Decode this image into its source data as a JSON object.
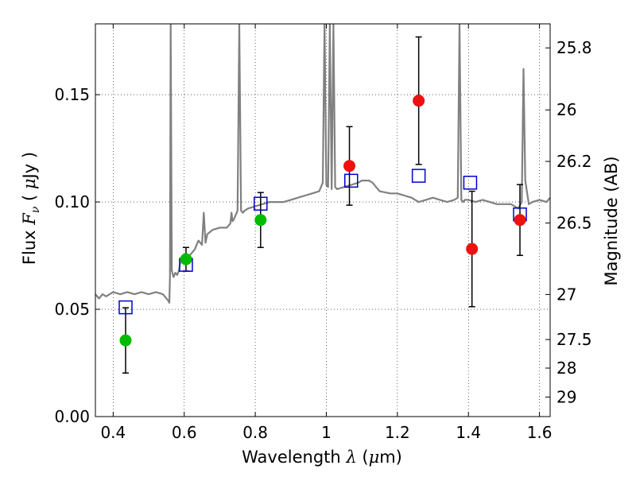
{
  "chart_data": {
    "type": "scatter",
    "title": "",
    "xlabel": "Wavelength  λ (μm)",
    "ylabel": "Flux  Fν  ( μJy )",
    "ylabel_right": "Magnitude (AB)",
    "xlim": [
      0.35,
      1.63
    ],
    "ylim": [
      0.0,
      0.183
    ],
    "grid": true,
    "x_ticks": [
      0.4,
      0.6,
      0.8,
      1.0,
      1.2,
      1.4,
      1.6
    ],
    "x_tick_labels": [
      "0.4",
      "0.6",
      "0.8",
      "1",
      "1.2",
      "1.4",
      "1.6"
    ],
    "y_ticks": [
      0.0,
      0.05,
      0.1,
      0.15
    ],
    "y_tick_labels": [
      "0.00",
      "0.05",
      "0.10",
      "0.15"
    ],
    "right_ticks": [
      {
        "label": "25.8",
        "flux": 0.1718
      },
      {
        "label": "26",
        "flux": 0.1429
      },
      {
        "label": "26.2",
        "flux": 0.1189
      },
      {
        "label": "26.5",
        "flux": 0.0902
      },
      {
        "label": "27",
        "flux": 0.0569
      },
      {
        "label": "27.5",
        "flux": 0.0359
      },
      {
        "label": "28",
        "flux": 0.0226
      },
      {
        "label": "29",
        "flux": 0.0091
      }
    ],
    "series": [
      {
        "type": "line",
        "color": "#808080",
        "x": [
          0.35,
          0.36,
          0.37,
          0.38,
          0.4,
          0.42,
          0.44,
          0.46,
          0.48,
          0.5,
          0.52,
          0.54,
          0.555,
          0.558,
          0.56,
          0.562,
          0.565,
          0.57,
          0.575,
          0.58,
          0.585,
          0.59,
          0.6,
          0.61,
          0.62,
          0.63,
          0.64,
          0.65,
          0.655,
          0.66,
          0.665,
          0.68,
          0.7,
          0.72,
          0.73,
          0.733,
          0.736,
          0.74,
          0.75,
          0.755,
          0.76,
          0.765,
          0.77,
          0.78,
          0.8,
          0.82,
          0.84,
          0.86,
          0.88,
          0.9,
          0.92,
          0.94,
          0.96,
          0.98,
          0.99,
          0.995,
          1.0,
          1.005,
          1.01,
          1.015,
          1.02,
          1.025,
          1.03,
          1.05,
          1.07,
          1.09,
          1.1,
          1.11,
          1.12,
          1.13,
          1.15,
          1.18,
          1.2,
          1.22,
          1.24,
          1.25,
          1.26,
          1.28,
          1.3,
          1.32,
          1.34,
          1.36,
          1.37,
          1.375,
          1.38,
          1.385,
          1.39,
          1.4,
          1.42,
          1.44,
          1.46,
          1.48,
          1.5,
          1.52,
          1.54,
          1.55,
          1.555,
          1.56,
          1.57,
          1.58,
          1.6,
          1.62,
          1.63
        ],
        "y": [
          0.057,
          0.055,
          0.057,
          0.056,
          0.058,
          0.057,
          0.058,
          0.057,
          0.058,
          0.057,
          0.058,
          0.057,
          0.054,
          0.053,
          0.065,
          0.183,
          0.068,
          0.065,
          0.067,
          0.066,
          0.068,
          0.073,
          0.072,
          0.074,
          0.076,
          0.078,
          0.082,
          0.08,
          0.095,
          0.081,
          0.085,
          0.087,
          0.088,
          0.088,
          0.09,
          0.095,
          0.091,
          0.092,
          0.096,
          0.183,
          0.096,
          0.095,
          0.096,
          0.097,
          0.098,
          0.099,
          0.1,
          0.1,
          0.1,
          0.101,
          0.102,
          0.103,
          0.104,
          0.105,
          0.109,
          0.183,
          0.108,
          0.107,
          0.183,
          0.106,
          0.183,
          0.107,
          0.106,
          0.107,
          0.108,
          0.109,
          0.11,
          0.11,
          0.11,
          0.109,
          0.105,
          0.104,
          0.104,
          0.103,
          0.102,
          0.101,
          0.1,
          0.101,
          0.102,
          0.101,
          0.1,
          0.101,
          0.102,
          0.183,
          0.101,
          0.1,
          0.101,
          0.101,
          0.1,
          0.101,
          0.1,
          0.099,
          0.099,
          0.099,
          0.097,
          0.1,
          0.162,
          0.11,
          0.099,
          0.1,
          0.101,
          0.1,
          0.102
        ]
      },
      {
        "type": "scatter",
        "marker": "circle",
        "color": "#00bb00",
        "x": [
          0.435,
          0.605,
          0.815
        ],
        "y": [
          0.0355,
          0.0733,
          0.0916
        ],
        "err": [
          0.0152,
          0.0055,
          0.0128
        ]
      },
      {
        "type": "scatter",
        "marker": "circle",
        "color": "#ee1111",
        "x": [
          1.065,
          1.26,
          1.41,
          1.545
        ],
        "y": [
          0.1168,
          0.1472,
          0.0781,
          0.0916
        ],
        "err": [
          0.0183,
          0.0297,
          0.0269,
          0.0165
        ]
      },
      {
        "type": "scatter",
        "marker": "open-square",
        "color": "#0000cc",
        "x": [
          0.435,
          0.605,
          0.815,
          1.07,
          1.26,
          1.405,
          1.545
        ],
        "y": [
          0.0509,
          0.0707,
          0.0992,
          0.1099,
          0.1122,
          0.109,
          0.0942
        ]
      }
    ]
  }
}
